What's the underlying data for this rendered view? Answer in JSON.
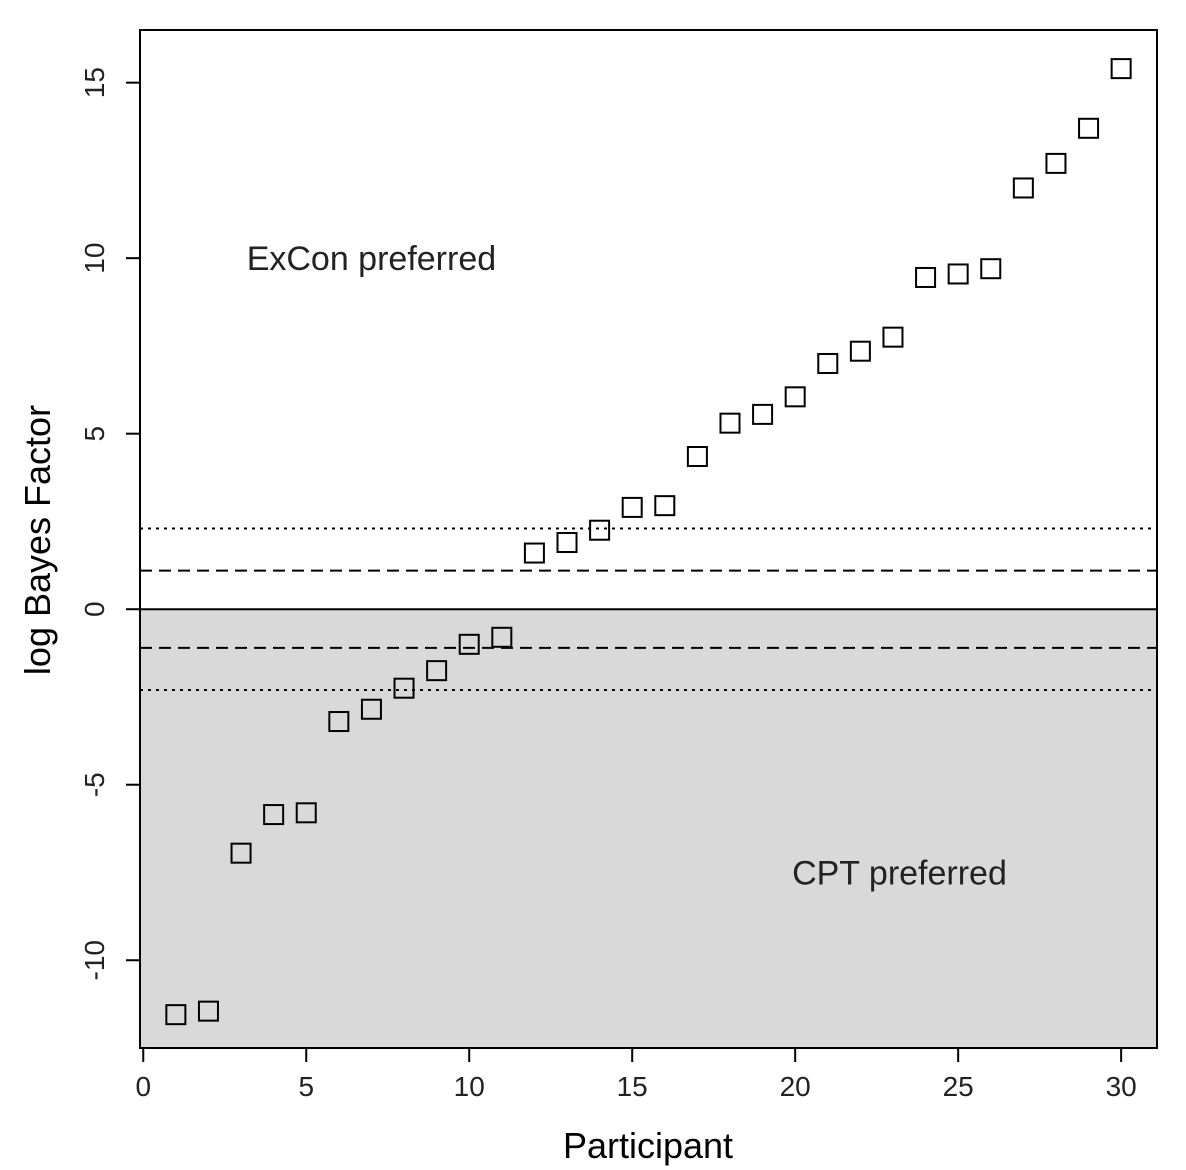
{
  "chart_data": {
    "type": "scatter",
    "title": "",
    "xlabel": "Participant",
    "ylabel": "log Bayes Factor",
    "xlim": [
      -0.1,
      31.1
    ],
    "ylim": [
      -12.5,
      16.5
    ],
    "x_ticks": [
      0,
      5,
      10,
      15,
      20,
      25,
      30
    ],
    "y_ticks": [
      -10,
      -5,
      0,
      5,
      10,
      15
    ],
    "grid": false,
    "legend": "none",
    "series": [
      {
        "marker": "open-square",
        "x": [
          1,
          2,
          3,
          4,
          5,
          6,
          7,
          8,
          9,
          10,
          11,
          12,
          13,
          14,
          15,
          16,
          17,
          18,
          19,
          20,
          21,
          22,
          23,
          24,
          25,
          26,
          27,
          28,
          29,
          30
        ],
        "y": [
          -11.55,
          -11.45,
          -6.95,
          -5.85,
          -5.8,
          -3.2,
          -2.85,
          -2.25,
          -1.75,
          -1.0,
          -0.8,
          1.6,
          1.9,
          2.25,
          2.9,
          2.95,
          4.35,
          5.3,
          5.55,
          6.05,
          7.0,
          7.35,
          7.75,
          9.45,
          9.55,
          9.7,
          12.0,
          12.7,
          13.7,
          15.4
        ]
      }
    ],
    "reference_lines": [
      {
        "y": 2.3,
        "style": "dotted"
      },
      {
        "y": 1.1,
        "style": "dashed"
      },
      {
        "y": 0,
        "style": "solid"
      },
      {
        "y": -1.1,
        "style": "dashed"
      },
      {
        "y": -2.3,
        "style": "dotted"
      }
    ],
    "shaded_region": {
      "y_from": -12.5,
      "y_to": 0,
      "color": "#d9d9d9"
    },
    "annotations": [
      {
        "text": "ExCon preferred",
        "x": 7,
        "y": 10
      },
      {
        "text": "CPT preferred",
        "x": 23.2,
        "y": -7.5
      }
    ],
    "colors": {
      "marker": "#000000",
      "shade": "#d9d9d9",
      "lines": "#000000"
    }
  }
}
